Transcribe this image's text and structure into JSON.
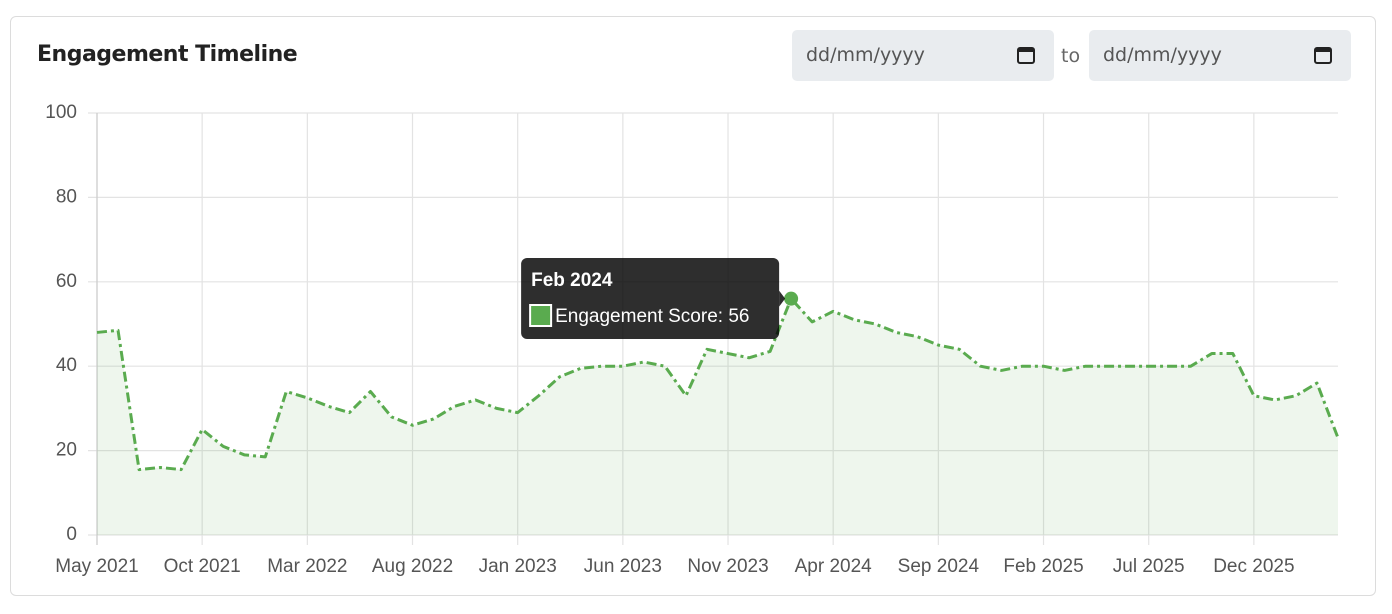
{
  "chart_data": {
    "type": "line",
    "title": "Engagement Timeline",
    "categories": [
      "May 2021",
      null,
      null,
      null,
      null,
      "Oct 2021",
      null,
      null,
      null,
      null,
      "Mar 2022",
      null,
      null,
      null,
      null,
      "Aug 2022",
      null,
      null,
      null,
      null,
      "Jan 2023",
      null,
      null,
      null,
      null,
      "Jun 2023",
      null,
      null,
      null,
      null,
      "Nov 2023",
      null,
      null,
      "Feb 2024",
      null,
      "Apr 2024",
      null,
      null,
      null,
      null,
      "Sep 2024",
      null,
      null,
      null,
      null,
      "Feb 2025",
      null,
      null,
      null,
      null,
      "Jul 2025",
      null,
      null,
      null,
      null,
      "Dec 2025",
      null,
      null,
      null,
      null
    ],
    "series": [
      {
        "name": "Engagement Score",
        "color": "#5aab4f",
        "values": [
          48,
          48.5,
          15.5,
          16,
          15.5,
          25,
          21,
          19,
          18.5,
          34,
          32.5,
          30.5,
          29,
          34,
          28,
          26,
          27.5,
          30.5,
          32,
          30,
          29,
          33,
          37.5,
          39.5,
          40,
          40,
          41,
          40,
          33,
          44,
          43,
          42,
          43.5,
          56,
          50.5,
          53,
          51,
          50,
          48,
          47,
          45,
          44,
          40,
          39,
          40,
          40,
          39,
          40,
          40,
          40,
          40,
          40,
          40,
          43,
          43,
          33,
          32,
          33,
          36,
          23
        ]
      }
    ],
    "ylim": [
      0,
      100
    ],
    "yticks": [
      0,
      20,
      40,
      60,
      80,
      100
    ],
    "grid": true,
    "tooltip_index": 33
  },
  "controls": {
    "from": "dd/mm/yyyy",
    "separator": "to",
    "to": "dd/mm/yyyy"
  }
}
